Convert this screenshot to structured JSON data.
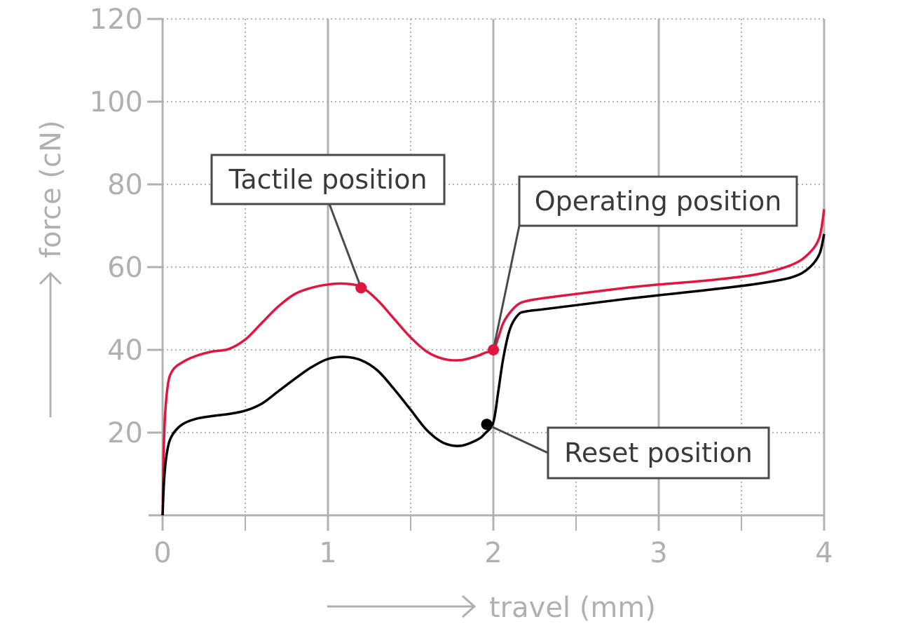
{
  "chart_data": {
    "type": "line",
    "xlabel": "travel (mm)",
    "ylabel": "force (cN)",
    "xlim": [
      0,
      4
    ],
    "ylim": [
      0,
      120
    ],
    "x_ticks": [
      "0",
      "1",
      "2",
      "3",
      "4"
    ],
    "y_ticks": [
      "20",
      "40",
      "60",
      "80",
      "100",
      "120"
    ],
    "grid": true,
    "colors": {
      "red": "#e0163f",
      "black": "#000000",
      "axis": "#b0b0b0",
      "callout_border": "#4a4a4a"
    },
    "series": [
      {
        "color": "red",
        "x": [
          0,
          0.01,
          0.03,
          0.06,
          0.12,
          0.2,
          0.3,
          0.4,
          0.5,
          0.6,
          0.7,
          0.8,
          0.9,
          1.0,
          1.1,
          1.2,
          1.3,
          1.4,
          1.5,
          1.6,
          1.7,
          1.8,
          1.9,
          1.95,
          2.0,
          2.03,
          2.06,
          2.1,
          2.15,
          2.2,
          2.3,
          2.5,
          2.8,
          3.0,
          3.3,
          3.6,
          3.8,
          3.9,
          3.97,
          4.0
        ],
        "y": [
          0,
          20,
          31,
          35,
          37,
          38.5,
          39.6,
          40.2,
          42.5,
          46.5,
          50.5,
          53.5,
          55,
          55.8,
          56,
          55.2,
          52,
          47.5,
          43,
          39.5,
          37.8,
          37.5,
          38.5,
          39.3,
          40,
          43,
          46.5,
          49,
          51,
          51.8,
          52.5,
          53.5,
          55,
          55.8,
          56.8,
          58.3,
          60.5,
          63,
          67,
          74
        ]
      },
      {
        "color": "black",
        "x": [
          0,
          0.01,
          0.03,
          0.06,
          0.12,
          0.2,
          0.3,
          0.4,
          0.5,
          0.6,
          0.7,
          0.8,
          0.9,
          1.0,
          1.1,
          1.2,
          1.3,
          1.4,
          1.5,
          1.6,
          1.7,
          1.8,
          1.9,
          1.95,
          2.0,
          2.03,
          2.06,
          2.1,
          2.15,
          2.2,
          2.3,
          2.5,
          2.8,
          3.0,
          3.3,
          3.6,
          3.8,
          3.9,
          3.97,
          4.0
        ],
        "y": [
          0,
          9,
          16,
          19.5,
          22,
          23.3,
          24,
          24.5,
          25.3,
          27,
          30,
          33,
          35.8,
          37.8,
          38.3,
          37.5,
          35,
          30.5,
          25.5,
          20.5,
          17.5,
          16.8,
          18.2,
          19.8,
          22.5,
          30,
          38,
          45,
          48.5,
          49.3,
          49.8,
          50.8,
          52.3,
          53.2,
          54.5,
          56,
          57.5,
          59.5,
          63,
          68
        ]
      }
    ],
    "annotations": [
      {
        "text": "Tactile position",
        "x": 1.2,
        "y": 55,
        "marker_color": "red"
      },
      {
        "text": "Operating position",
        "x": 2.0,
        "y": 40,
        "marker_color": "red"
      },
      {
        "text": "Reset position",
        "x": 1.96,
        "y": 22,
        "marker_color": "black"
      }
    ]
  }
}
